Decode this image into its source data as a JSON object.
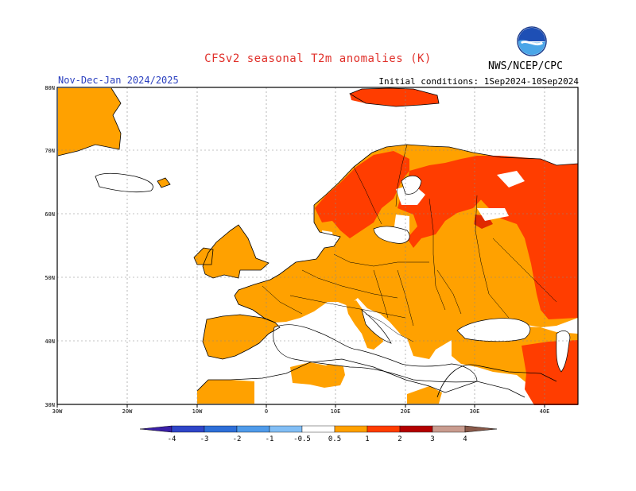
{
  "header": {
    "title": "CFSv2 seasonal T2m anomalies (K)",
    "period": "Nov-Dec-Jan 2024/2025",
    "initial_conditions": "Initial conditions: 1Sep2024-10Sep2024",
    "agency": "NWS/NCEP/CPC",
    "logo_text": "NOAA"
  },
  "map": {
    "lon_labels": [
      "30W",
      "20W",
      "10W",
      "0",
      "10E",
      "20E",
      "30E",
      "40E"
    ],
    "lat_labels": [
      "80N",
      "70N",
      "60N",
      "50N",
      "40N",
      "30N"
    ]
  },
  "legend": {
    "labels": [
      "-4",
      "-3",
      "-2",
      "-1",
      "-0.5",
      "0.5",
      "1",
      "2",
      "3",
      "4"
    ],
    "colors": [
      "#3a1fa8",
      "#2f45c8",
      "#2e6fd8",
      "#4f9bea",
      "#82bef5",
      "#ffffff",
      "#ffa100",
      "#ff3d00",
      "#b30000",
      "#c99c8f",
      "#8a5a4a"
    ]
  }
}
